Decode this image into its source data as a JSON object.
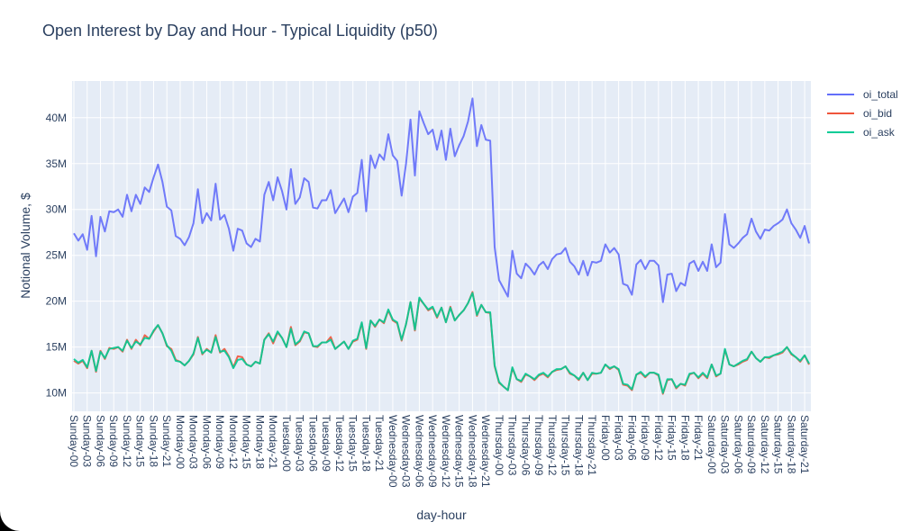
{
  "chart_data": {
    "type": "line",
    "title": "Open Interest by Day and Hour - Typical Liquidity (p50)",
    "xlabel": "day-hour",
    "ylabel": "Notional Volume, $",
    "ylim": [
      8,
      44
    ],
    "yticks": [
      10,
      15,
      20,
      25,
      30,
      35,
      40
    ],
    "ytick_labels": [
      "10M",
      "15M",
      "20M",
      "25M",
      "30M",
      "35M",
      "40M"
    ],
    "grid": true,
    "legend_position": "top-right",
    "plot_background": "#e5ecf6",
    "x_tick_labels": [
      "Sunday-00",
      "Sunday-03",
      "Sunday-06",
      "Sunday-09",
      "Sunday-12",
      "Sunday-15",
      "Sunday-18",
      "Sunday-21",
      "Monday-00",
      "Monday-03",
      "Monday-06",
      "Monday-09",
      "Monday-12",
      "Monday-15",
      "Monday-18",
      "Monday-21",
      "Tuesday-00",
      "Tuesday-03",
      "Tuesday-06",
      "Tuesday-09",
      "Tuesday-12",
      "Tuesday-15",
      "Tuesday-18",
      "Tuesday-21",
      "Wednesday-00",
      "Wednesday-03",
      "Wednesday-06",
      "Wednesday-09",
      "Wednesday-12",
      "Wednesday-15",
      "Wednesday-18",
      "Wednesday-21",
      "Thursday-00",
      "Thursday-03",
      "Thursday-06",
      "Thursday-09",
      "Thursday-12",
      "Thursday-15",
      "Thursday-18",
      "Thursday-21",
      "Friday-00",
      "Friday-03",
      "Friday-06",
      "Friday-09",
      "Friday-12",
      "Friday-15",
      "Friday-18",
      "Friday-21",
      "Saturday-00",
      "Saturday-03",
      "Saturday-06",
      "Saturday-09",
      "Saturday-12",
      "Saturday-15",
      "Saturday-18",
      "Saturday-21"
    ],
    "series": [
      {
        "name": "oi_total",
        "color": "#636efa",
        "values": [
          27.4,
          26.6,
          27.3,
          25.6,
          29.3,
          24.9,
          29.2,
          27.6,
          29.8,
          29.7,
          30.0,
          29.2,
          31.6,
          29.8,
          31.6,
          30.6,
          32.4,
          31.9,
          33.5,
          34.9,
          33.0,
          30.3,
          29.9,
          27.1,
          26.8,
          26.1,
          27.0,
          28.5,
          32.2,
          28.5,
          29.6,
          28.8,
          32.8,
          28.9,
          29.4,
          27.9,
          25.5,
          27.9,
          27.7,
          26.3,
          25.9,
          26.8,
          26.5,
          31.6,
          33.0,
          31.0,
          33.5,
          32.0,
          30.0,
          34.4,
          30.6,
          31.3,
          33.4,
          33.0,
          30.2,
          30.1,
          31.0,
          31.0,
          32.1,
          29.6,
          30.4,
          31.2,
          29.7,
          31.4,
          31.8,
          35.4,
          29.8,
          35.9,
          34.5,
          36.0,
          35.4,
          38.2,
          35.9,
          35.3,
          31.5,
          35.0,
          39.8,
          33.7,
          40.7,
          39.4,
          38.2,
          38.7,
          36.5,
          38.6,
          35.4,
          38.8,
          35.8,
          37.0,
          38.0,
          39.6,
          42.1,
          36.9,
          39.2,
          37.6,
          37.5,
          25.9,
          22.3,
          21.4,
          20.5,
          25.5,
          23.0,
          22.5,
          24.1,
          23.6,
          22.9,
          23.9,
          24.3,
          23.5,
          24.6,
          25.1,
          25.2,
          25.8,
          24.3,
          23.8,
          22.9,
          24.4,
          22.8,
          24.3,
          24.2,
          24.4,
          26.2,
          25.3,
          25.8,
          25.1,
          21.9,
          21.7,
          20.7,
          24.0,
          24.5,
          23.5,
          24.4,
          24.4,
          23.9,
          19.9,
          22.9,
          23.0,
          21.1,
          22.0,
          21.7,
          24.1,
          24.4,
          23.3,
          24.3,
          23.3,
          26.2,
          23.7,
          24.2,
          29.5,
          26.2,
          25.8,
          26.3,
          26.9,
          27.3,
          29.0,
          27.6,
          26.8,
          27.8,
          27.7,
          28.2,
          28.5,
          28.9,
          30.0,
          28.5,
          27.8,
          26.9,
          28.2,
          26.3
        ]
      },
      {
        "name": "oi_bid",
        "color": "#ef553b",
        "values": [
          13.5,
          13.2,
          13.5,
          12.7,
          14.6,
          12.3,
          14.6,
          13.7,
          14.9,
          14.8,
          15.0,
          14.5,
          15.8,
          14.8,
          15.8,
          15.2,
          16.3,
          15.9,
          16.7,
          17.4,
          16.5,
          15.1,
          14.8,
          13.6,
          13.4,
          13.0,
          13.5,
          14.2,
          16.1,
          14.2,
          14.8,
          14.4,
          16.3,
          14.4,
          14.8,
          14.0,
          12.8,
          14.0,
          13.9,
          13.1,
          12.9,
          13.4,
          13.2,
          15.8,
          16.5,
          15.4,
          16.6,
          16.0,
          15.0,
          17.2,
          15.2,
          15.6,
          16.6,
          16.5,
          15.1,
          15.0,
          15.5,
          15.5,
          16.1,
          14.8,
          15.2,
          15.6,
          14.8,
          15.6,
          15.8,
          17.6,
          14.8,
          17.9,
          17.2,
          18.0,
          17.6,
          19.0,
          17.9,
          17.6,
          15.7,
          17.5,
          19.9,
          16.8,
          20.3,
          19.7,
          19.0,
          19.3,
          18.2,
          19.3,
          17.7,
          19.4,
          17.9,
          18.5,
          19.0,
          19.8,
          21.0,
          18.4,
          19.6,
          18.8,
          18.7,
          12.9,
          11.1,
          10.7,
          10.3,
          12.7,
          11.5,
          11.2,
          12.0,
          11.8,
          11.4,
          11.9,
          12.1,
          11.7,
          12.3,
          12.5,
          12.6,
          12.9,
          12.1,
          11.9,
          11.4,
          12.2,
          11.4,
          12.1,
          12.1,
          12.2,
          13.1,
          12.6,
          12.9,
          12.5,
          10.9,
          10.8,
          10.3,
          12.0,
          12.2,
          11.7,
          12.2,
          12.2,
          11.9,
          9.9,
          11.4,
          11.5,
          10.5,
          11.0,
          10.8,
          12.0,
          12.2,
          11.6,
          12.1,
          11.6,
          13.1,
          11.8,
          12.1,
          14.7,
          13.1,
          12.9,
          13.1,
          13.4,
          13.6,
          14.5,
          13.8,
          13.4,
          13.9,
          13.8,
          14.1,
          14.2,
          14.4,
          15.0,
          14.2,
          13.9,
          13.4,
          14.1,
          13.1
        ]
      },
      {
        "name": "oi_ask",
        "color": "#00cc96",
        "values": [
          13.7,
          13.3,
          13.6,
          12.8,
          14.6,
          12.4,
          14.5,
          13.8,
          14.8,
          14.9,
          15.0,
          14.6,
          15.7,
          14.9,
          15.6,
          15.3,
          16.0,
          15.9,
          16.8,
          17.4,
          16.5,
          15.2,
          14.6,
          13.5,
          13.4,
          13.0,
          13.5,
          14.3,
          16.0,
          14.3,
          14.7,
          14.4,
          16.1,
          14.5,
          14.6,
          13.9,
          12.7,
          13.6,
          13.7,
          13.1,
          12.9,
          13.4,
          13.2,
          15.8,
          16.4,
          15.6,
          16.7,
          16.0,
          15.0,
          17.0,
          15.3,
          15.7,
          16.7,
          16.5,
          15.1,
          15.1,
          15.5,
          15.5,
          15.8,
          14.8,
          15.2,
          15.6,
          14.8,
          15.7,
          15.9,
          17.7,
          14.9,
          17.9,
          17.3,
          18.0,
          17.7,
          19.1,
          18.0,
          17.7,
          15.8,
          17.5,
          19.9,
          16.9,
          20.4,
          19.7,
          19.1,
          19.4,
          18.3,
          19.3,
          17.7,
          19.3,
          17.9,
          18.5,
          19.0,
          19.8,
          20.9,
          18.5,
          19.6,
          18.8,
          18.8,
          13.0,
          11.2,
          10.7,
          10.3,
          12.8,
          11.5,
          11.3,
          12.1,
          11.8,
          11.5,
          12.0,
          12.2,
          11.8,
          12.3,
          12.6,
          12.6,
          12.9,
          12.2,
          11.9,
          11.5,
          12.2,
          11.4,
          12.2,
          12.1,
          12.2,
          13.1,
          12.7,
          12.9,
          12.6,
          11.0,
          10.9,
          10.4,
          12.0,
          12.3,
          11.8,
          12.2,
          12.2,
          12.0,
          10.0,
          11.5,
          11.5,
          10.6,
          11.0,
          10.9,
          12.1,
          12.2,
          11.7,
          12.2,
          11.7,
          13.1,
          11.9,
          12.1,
          14.8,
          13.1,
          12.9,
          13.2,
          13.5,
          13.7,
          14.5,
          13.8,
          13.4,
          13.9,
          13.9,
          14.1,
          14.3,
          14.5,
          15.0,
          14.3,
          13.9,
          13.5,
          14.1,
          13.2
        ]
      }
    ]
  }
}
